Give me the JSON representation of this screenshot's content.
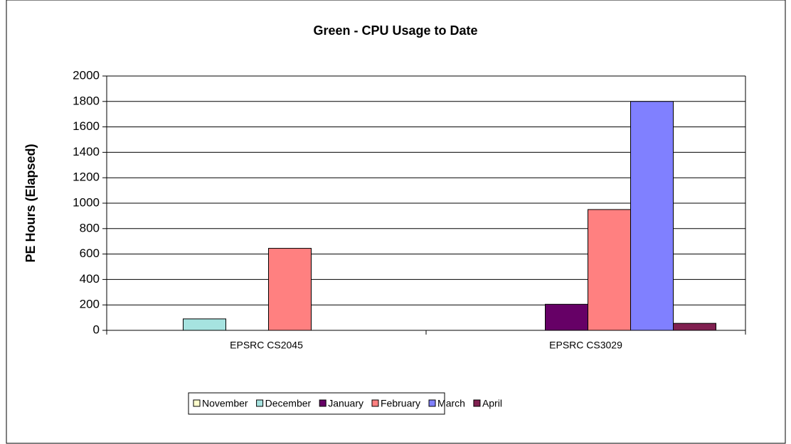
{
  "chart_data": {
    "type": "bar",
    "title": "Green - CPU Usage to Date",
    "y_label": "PE Hours (Elapsed)",
    "categories": [
      "EPSRC CS2045",
      "EPSRC CS3029"
    ],
    "series": [
      {
        "name": "November",
        "color": "#FFFFCC",
        "values": [
          0,
          0
        ]
      },
      {
        "name": "December",
        "color": "#A6E3E0",
        "values": [
          90,
          0
        ]
      },
      {
        "name": "January",
        "color": "#660066",
        "values": [
          0,
          205
        ]
      },
      {
        "name": "February",
        "color": "#FF8080",
        "values": [
          645,
          950
        ]
      },
      {
        "name": "March",
        "color": "#8080FF",
        "values": [
          0,
          1800
        ]
      },
      {
        "name": "April",
        "color": "#802050",
        "values": [
          0,
          55
        ]
      }
    ],
    "ylim": [
      0,
      2000
    ],
    "yticks": [
      0,
      200,
      400,
      600,
      800,
      1000,
      1200,
      1400,
      1600,
      1800,
      2000
    ],
    "grid": true,
    "legend": "bottom"
  }
}
